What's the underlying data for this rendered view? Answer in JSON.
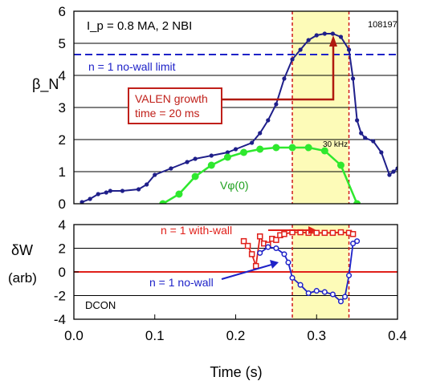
{
  "chart_data": [
    {
      "type": "line",
      "panel": "top",
      "annotation_params": "I_p = 0.8 MA, 2 NBI",
      "shot": "108197",
      "ylabel": "β_N",
      "ylim": [
        0,
        6
      ],
      "xlim": [
        0,
        0.4
      ],
      "yticks": [
        "0",
        "1",
        "2",
        "3",
        "4",
        "5",
        "6"
      ],
      "grid_y": true,
      "shaded_region": [
        0.27,
        0.34
      ],
      "reference_line": {
        "name": "n = 1 no-wall limit",
        "y": 4.65,
        "color": "#1e22c8"
      },
      "annotations": {
        "valen_line1": "VALEN growth",
        "valen_line2": "time = 20 ms",
        "freq": "30 kHz",
        "vphi": "Vφ(0)"
      },
      "series": [
        {
          "name": "β_N",
          "color": "#1f1f8a",
          "x": [
            0.01,
            0.02,
            0.03,
            0.04,
            0.045,
            0.06,
            0.08,
            0.09,
            0.1,
            0.12,
            0.14,
            0.15,
            0.17,
            0.19,
            0.2,
            0.22,
            0.23,
            0.24,
            0.25,
            0.26,
            0.27,
            0.28,
            0.29,
            0.3,
            0.31,
            0.32,
            0.33,
            0.34,
            0.345,
            0.35,
            0.355,
            0.36,
            0.37,
            0.38,
            0.39,
            0.395,
            0.4
          ],
          "y": [
            0.05,
            0.15,
            0.3,
            0.35,
            0.4,
            0.4,
            0.45,
            0.6,
            0.9,
            1.1,
            1.3,
            1.4,
            1.5,
            1.6,
            1.7,
            1.9,
            2.2,
            2.6,
            3.1,
            3.9,
            4.5,
            4.8,
            5.1,
            5.25,
            5.3,
            5.3,
            5.2,
            4.8,
            3.9,
            2.6,
            2.2,
            2.05,
            1.95,
            1.6,
            0.9,
            1.0,
            1.1
          ]
        },
        {
          "name": "Vφ(0)",
          "color": "#2ee82e",
          "x": [
            0.11,
            0.13,
            0.15,
            0.17,
            0.19,
            0.21,
            0.23,
            0.25,
            0.27,
            0.29,
            0.31,
            0.33,
            0.35
          ],
          "y": [
            0.0,
            0.3,
            0.85,
            1.2,
            1.45,
            1.6,
            1.7,
            1.75,
            1.75,
            1.75,
            1.65,
            1.2,
            0.0
          ]
        }
      ]
    },
    {
      "type": "line",
      "panel": "bottom",
      "ylabel_line1": "δW",
      "ylabel_line2": "(arb)",
      "xlabel": "Time (s)",
      "xlim": [
        0,
        0.4
      ],
      "ylim": [
        -4,
        4
      ],
      "xticks": [
        "0.0",
        "0.1",
        "0.2",
        "0.3",
        "0.4"
      ],
      "yticks": [
        "-4",
        "-2",
        "0",
        "2",
        "4"
      ],
      "grid_y": true,
      "shaded_region": [
        0.27,
        0.34
      ],
      "reference_line": {
        "y": 0,
        "color": "#e0201a"
      },
      "annotations": {
        "code": "DCON"
      },
      "series": [
        {
          "name": "n = 1 with-wall",
          "color": "#e0201a",
          "x": [
            0.21,
            0.215,
            0.22,
            0.225,
            0.23,
            0.235,
            0.24,
            0.245,
            0.25,
            0.255,
            0.26,
            0.27,
            0.28,
            0.29,
            0.3,
            0.31,
            0.32,
            0.33,
            0.34,
            0.345
          ],
          "y": [
            2.6,
            2.2,
            1.5,
            0.5,
            3.0,
            2.4,
            2.3,
            2.8,
            2.7,
            3.1,
            3.2,
            3.35,
            3.35,
            3.3,
            3.3,
            3.3,
            3.3,
            3.35,
            3.3,
            3.2
          ]
        },
        {
          "name": "n = 1 no-wall",
          "color": "#1e22c8",
          "x": [
            0.23,
            0.24,
            0.25,
            0.26,
            0.265,
            0.27,
            0.28,
            0.29,
            0.3,
            0.31,
            0.32,
            0.33,
            0.335,
            0.34,
            0.345,
            0.35
          ],
          "y": [
            1.6,
            2.1,
            2.0,
            1.5,
            0.8,
            -0.5,
            -1.1,
            -1.8,
            -1.6,
            -1.7,
            -1.9,
            -2.5,
            -2.1,
            -0.3,
            2.4,
            2.6
          ]
        }
      ]
    }
  ]
}
